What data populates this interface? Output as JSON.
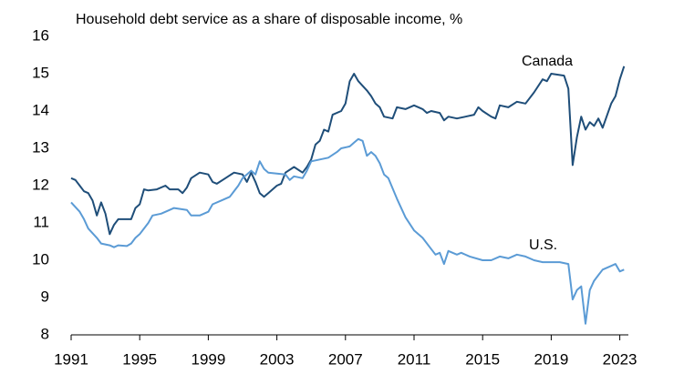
{
  "chart_data": {
    "type": "line",
    "title": "Household debt service as a share of disposable income, %",
    "xlim": [
      1991,
      2023.5
    ],
    "ylim": [
      8,
      16
    ],
    "xticks": [
      1991,
      1995,
      1999,
      2003,
      2007,
      2011,
      2015,
      2019,
      2023
    ],
    "yticks": [
      8,
      9,
      10,
      11,
      12,
      13,
      14,
      15,
      16
    ],
    "grid": false,
    "annotations": [
      "Canada",
      "U.S."
    ],
    "series": [
      {
        "name": "Canada",
        "color": "#1f4e79",
        "x": [
          1991.0,
          1991.25,
          1991.5,
          1991.75,
          1992.0,
          1992.25,
          1992.5,
          1992.75,
          1993.0,
          1993.25,
          1993.5,
          1993.75,
          1994.0,
          1994.5,
          1994.75,
          1995.0,
          1995.25,
          1995.5,
          1996.0,
          1996.5,
          1996.75,
          1997.25,
          1997.5,
          1997.75,
          1998.0,
          1998.5,
          1999.0,
          1999.25,
          1999.5,
          2000.0,
          2000.5,
          2001.0,
          2001.25,
          2001.5,
          2001.75,
          2002.0,
          2002.25,
          2002.5,
          2003.0,
          2003.25,
          2003.5,
          2004.0,
          2004.5,
          2004.75,
          2005.0,
          2005.25,
          2005.5,
          2005.75,
          2006.0,
          2006.25,
          2006.75,
          2007.0,
          2007.25,
          2007.5,
          2007.75,
          2008.25,
          2008.5,
          2008.75,
          2009.0,
          2009.25,
          2009.75,
          2010.0,
          2010.5,
          2011.0,
          2011.5,
          2011.75,
          2012.0,
          2012.5,
          2012.75,
          2013.0,
          2013.5,
          2014.0,
          2014.5,
          2014.75,
          2015.0,
          2015.5,
          2015.75,
          2016.0,
          2016.5,
          2017.0,
          2017.5,
          2018.0,
          2018.5,
          2018.75,
          2019.0,
          2019.75,
          2020.0,
          2020.25,
          2020.5,
          2020.75,
          2021.0,
          2021.25,
          2021.5,
          2021.75,
          2022.0,
          2022.5,
          2022.75,
          2023.0,
          2023.25
        ],
        "values": [
          12.2,
          12.15,
          12.0,
          11.85,
          11.8,
          11.6,
          11.2,
          11.55,
          11.25,
          10.7,
          10.95,
          11.1,
          11.1,
          11.1,
          11.4,
          11.5,
          11.9,
          11.87,
          11.9,
          12.0,
          11.9,
          11.9,
          11.8,
          11.95,
          12.2,
          12.35,
          12.3,
          12.1,
          12.05,
          12.2,
          12.35,
          12.3,
          12.1,
          12.35,
          12.1,
          11.8,
          11.7,
          11.8,
          12.0,
          12.05,
          12.35,
          12.5,
          12.35,
          12.5,
          12.7,
          13.1,
          13.2,
          13.5,
          13.45,
          13.9,
          14.0,
          14.2,
          14.8,
          15.0,
          14.8,
          14.55,
          14.4,
          14.2,
          14.1,
          13.85,
          13.8,
          14.1,
          14.05,
          14.15,
          14.05,
          13.95,
          14.0,
          13.95,
          13.75,
          13.85,
          13.8,
          13.85,
          13.9,
          14.1,
          14.0,
          13.85,
          13.8,
          14.15,
          14.1,
          14.25,
          14.2,
          14.5,
          14.85,
          14.8,
          15.0,
          14.95,
          14.6,
          12.55,
          13.3,
          13.85,
          13.5,
          13.7,
          13.6,
          13.8,
          13.55,
          14.2,
          14.4,
          14.85,
          15.2
        ]
      },
      {
        "name": "U.S.",
        "color": "#5b9bd5",
        "x": [
          1991.0,
          1991.5,
          1991.75,
          1992.0,
          1992.5,
          1992.75,
          1993.25,
          1993.5,
          1993.75,
          1994.25,
          1994.5,
          1994.75,
          1995.0,
          1995.5,
          1995.75,
          1996.25,
          1996.75,
          1997.0,
          1997.75,
          1998.0,
          1998.5,
          1999.0,
          1999.25,
          1999.75,
          2000.25,
          2000.75,
          2001.0,
          2001.25,
          2001.5,
          2001.75,
          2002.0,
          2002.25,
          2002.5,
          2003.5,
          2003.75,
          2004.0,
          2004.5,
          2004.75,
          2005.0,
          2005.5,
          2006.0,
          2006.5,
          2006.75,
          2007.25,
          2007.5,
          2007.75,
          2008.0,
          2008.25,
          2008.5,
          2008.75,
          2009.0,
          2009.25,
          2009.5,
          2010.0,
          2010.5,
          2011.0,
          2011.5,
          2012.0,
          2012.25,
          2012.5,
          2012.75,
          2013.0,
          2013.5,
          2013.75,
          2014.25,
          2015.0,
          2015.5,
          2016.0,
          2016.5,
          2017.0,
          2017.5,
          2018.0,
          2018.5,
          2019.0,
          2019.5,
          2020.0,
          2020.25,
          2020.5,
          2020.75,
          2021.0,
          2021.25,
          2021.5,
          2021.75,
          2022.0,
          2022.5,
          2022.75,
          2023.0,
          2023.25
        ],
        "values": [
          11.55,
          11.3,
          11.1,
          10.85,
          10.6,
          10.45,
          10.4,
          10.35,
          10.4,
          10.38,
          10.45,
          10.6,
          10.7,
          11.0,
          11.2,
          11.25,
          11.35,
          11.4,
          11.35,
          11.2,
          11.2,
          11.3,
          11.5,
          11.6,
          11.7,
          12.0,
          12.2,
          12.3,
          12.4,
          12.3,
          12.65,
          12.45,
          12.35,
          12.3,
          12.15,
          12.25,
          12.2,
          12.4,
          12.65,
          12.7,
          12.75,
          12.9,
          13.0,
          13.05,
          13.15,
          13.25,
          13.2,
          12.8,
          12.9,
          12.8,
          12.6,
          12.3,
          12.2,
          11.65,
          11.15,
          10.8,
          10.6,
          10.3,
          10.15,
          10.2,
          9.9,
          10.25,
          10.15,
          10.2,
          10.1,
          10.0,
          10.0,
          10.1,
          10.05,
          10.15,
          10.1,
          10.0,
          9.95,
          9.95,
          9.95,
          9.9,
          8.95,
          9.2,
          9.3,
          8.3,
          9.2,
          9.45,
          9.6,
          9.75,
          9.85,
          9.9,
          9.7,
          9.75
        ]
      }
    ]
  }
}
